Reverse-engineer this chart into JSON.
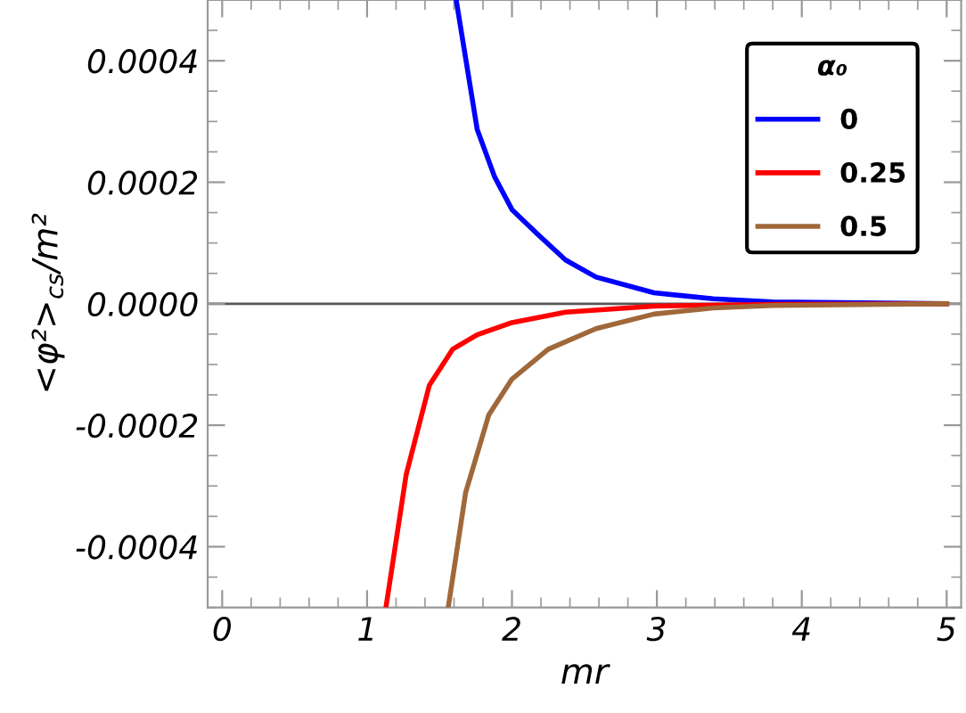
{
  "chart_data": {
    "type": "line",
    "xlabel": "mr",
    "ylabel": "<φ²>$_{cs}$/m²",
    "legend_title": "α₀",
    "legend": "top right",
    "grid": false,
    "marker": "none",
    "line_style": "solid",
    "xlim": [
      -0.1,
      5.1
    ],
    "xticks": [
      0,
      1,
      2,
      3,
      4,
      5
    ],
    "ylim": [
      -0.0005,
      0.0005
    ],
    "yticks": [
      {
        "value": -0.0004,
        "label": "-0.0004"
      },
      {
        "value": -0.0002,
        "label": "-0.0002"
      },
      {
        "value": 0,
        "label": "0.0000"
      },
      {
        "value": 0.0002,
        "label": "0.0002"
      },
      {
        "value": 0.0004,
        "label": "0.0004"
      }
    ],
    "ref_lines": [
      {
        "axis": "y",
        "value": 0,
        "color": "#555555",
        "line_style": "solid"
      }
    ],
    "series": [
      {
        "name": "0",
        "color": "#0000ff",
        "x": [
          1.615,
          1.76,
          1.88,
          2.0,
          2.17,
          2.37,
          2.58,
          2.98,
          3.39,
          3.8,
          5.0
        ],
        "values": [
          0.0005,
          0.000287,
          0.000209,
          0.000155,
          0.000116,
          7.2e-05,
          4.4e-05,
          1.8e-05,
          8e-06,
          3e-06,
          0
        ]
      },
      {
        "name": "0.25",
        "color": "#ff0000",
        "x": [
          1.13,
          1.27,
          1.43,
          1.59,
          1.76,
          2.0,
          2.37,
          2.98,
          3.8,
          5.0
        ],
        "values": [
          -0.0005,
          -0.000281,
          -0.000134,
          -7.5e-05,
          -5.1e-05,
          -3.1e-05,
          -1.4e-05,
          -4e-06,
          -1e-06,
          0
        ]
      },
      {
        "name": "0.5",
        "color": "#a0683a",
        "x": [
          1.56,
          1.68,
          1.84,
          2.0,
          2.25,
          2.58,
          2.98,
          3.39,
          3.8,
          5.0
        ],
        "values": [
          -0.0005,
          -0.000311,
          -0.000183,
          -0.000124,
          -7.5e-05,
          -4.1e-05,
          -1.7e-05,
          -7e-06,
          -3e-06,
          0
        ]
      }
    ]
  }
}
